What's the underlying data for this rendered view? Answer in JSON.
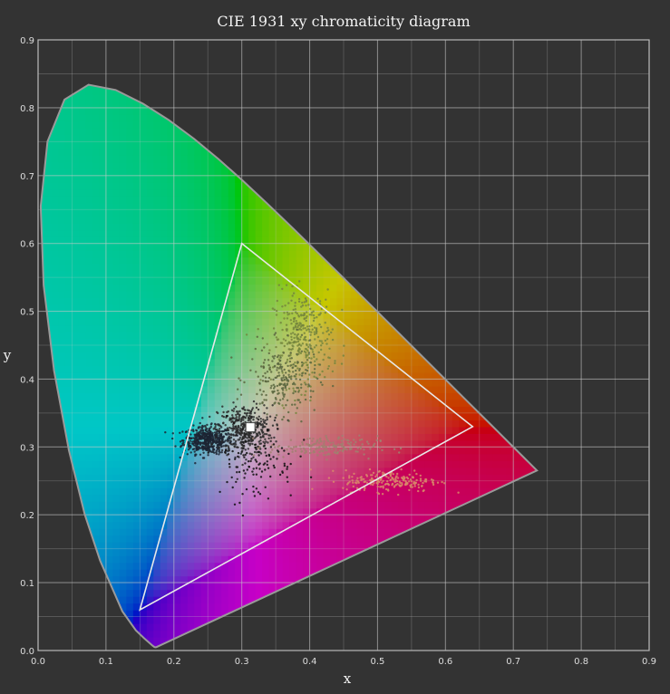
{
  "chart_data": {
    "type": "scatter",
    "title": "CIE 1931 xy chromaticity diagram",
    "xlabel": "x",
    "ylabel": "y",
    "xlim": [
      0,
      0.9
    ],
    "ylim": [
      0,
      0.9
    ],
    "x_ticks": [
      "0.0",
      "0.1",
      "0.2",
      "0.3",
      "0.4",
      "0.5",
      "0.6",
      "0.7",
      "0.8",
      "0.9"
    ],
    "y_ticks": [
      "0.0",
      "0.1",
      "0.2",
      "0.3",
      "0.4",
      "0.5",
      "0.6",
      "0.7",
      "0.8",
      "0.9"
    ],
    "grid": true,
    "spectral_locus": [
      [
        0.1741,
        0.005
      ],
      [
        0.1738,
        0.0049
      ],
      [
        0.1733,
        0.0048
      ],
      [
        0.1726,
        0.0048
      ],
      [
        0.1714,
        0.0051
      ],
      [
        0.1689,
        0.0069
      ],
      [
        0.1644,
        0.0109
      ],
      [
        0.1566,
        0.0177
      ],
      [
        0.144,
        0.0297
      ],
      [
        0.1241,
        0.0578
      ],
      [
        0.0913,
        0.1327
      ],
      [
        0.0687,
        0.2007
      ],
      [
        0.0454,
        0.295
      ],
      [
        0.0235,
        0.4127
      ],
      [
        0.0082,
        0.5384
      ],
      [
        0.0039,
        0.6548
      ],
      [
        0.0139,
        0.7502
      ],
      [
        0.0389,
        0.812
      ],
      [
        0.0743,
        0.8338
      ],
      [
        0.1142,
        0.8262
      ],
      [
        0.1547,
        0.8059
      ],
      [
        0.1929,
        0.7816
      ],
      [
        0.2296,
        0.7543
      ],
      [
        0.2658,
        0.7243
      ],
      [
        0.3016,
        0.6923
      ],
      [
        0.3373,
        0.6589
      ],
      [
        0.3731,
        0.6245
      ],
      [
        0.4087,
        0.5896
      ],
      [
        0.4441,
        0.5547
      ],
      [
        0.4788,
        0.5202
      ],
      [
        0.5125,
        0.4866
      ],
      [
        0.5448,
        0.4544
      ],
      [
        0.5752,
        0.4242
      ],
      [
        0.6029,
        0.3965
      ],
      [
        0.627,
        0.3725
      ],
      [
        0.6482,
        0.3514
      ],
      [
        0.6658,
        0.334
      ],
      [
        0.6801,
        0.3197
      ],
      [
        0.6915,
        0.3083
      ],
      [
        0.7006,
        0.2993
      ],
      [
        0.7079,
        0.292
      ],
      [
        0.714,
        0.2859
      ],
      [
        0.719,
        0.2809
      ],
      [
        0.723,
        0.277
      ],
      [
        0.726,
        0.274
      ],
      [
        0.7283,
        0.2717
      ],
      [
        0.73,
        0.27
      ],
      [
        0.7347,
        0.2653
      ]
    ],
    "gamut_triangle": [
      [
        0.64,
        0.33
      ],
      [
        0.3,
        0.6
      ],
      [
        0.15,
        0.06
      ]
    ],
    "white_point": [
      0.3127,
      0.329
    ],
    "scatter_clusters": [
      {
        "name": "",
        "center": [
          0.25,
          0.31
        ],
        "spread": [
          0.018,
          0.01
        ],
        "count": 500,
        "color": "#1c2433"
      },
      {
        "name": "",
        "center": [
          0.305,
          0.325
        ],
        "spread": [
          0.02,
          0.018
        ],
        "count": 400,
        "color": "#2a2a2a"
      },
      {
        "name": "",
        "center": [
          0.39,
          0.46
        ],
        "spread": [
          0.022,
          0.035
        ],
        "count": 320,
        "color": "#74853d"
      },
      {
        "name": "",
        "center": [
          0.36,
          0.4
        ],
        "spread": [
          0.025,
          0.025
        ],
        "count": 220,
        "color": "#5a6640"
      },
      {
        "name": "",
        "center": [
          0.42,
          0.3
        ],
        "spread": [
          0.04,
          0.008
        ],
        "count": 170,
        "color": "#a08070"
      },
      {
        "name": "",
        "center": [
          0.52,
          0.25
        ],
        "spread": [
          0.035,
          0.008
        ],
        "count": 200,
        "color": "#d88a6a"
      },
      {
        "name": "",
        "center": [
          0.32,
          0.28
        ],
        "spread": [
          0.03,
          0.03
        ],
        "count": 120,
        "color": "#101010"
      }
    ]
  }
}
